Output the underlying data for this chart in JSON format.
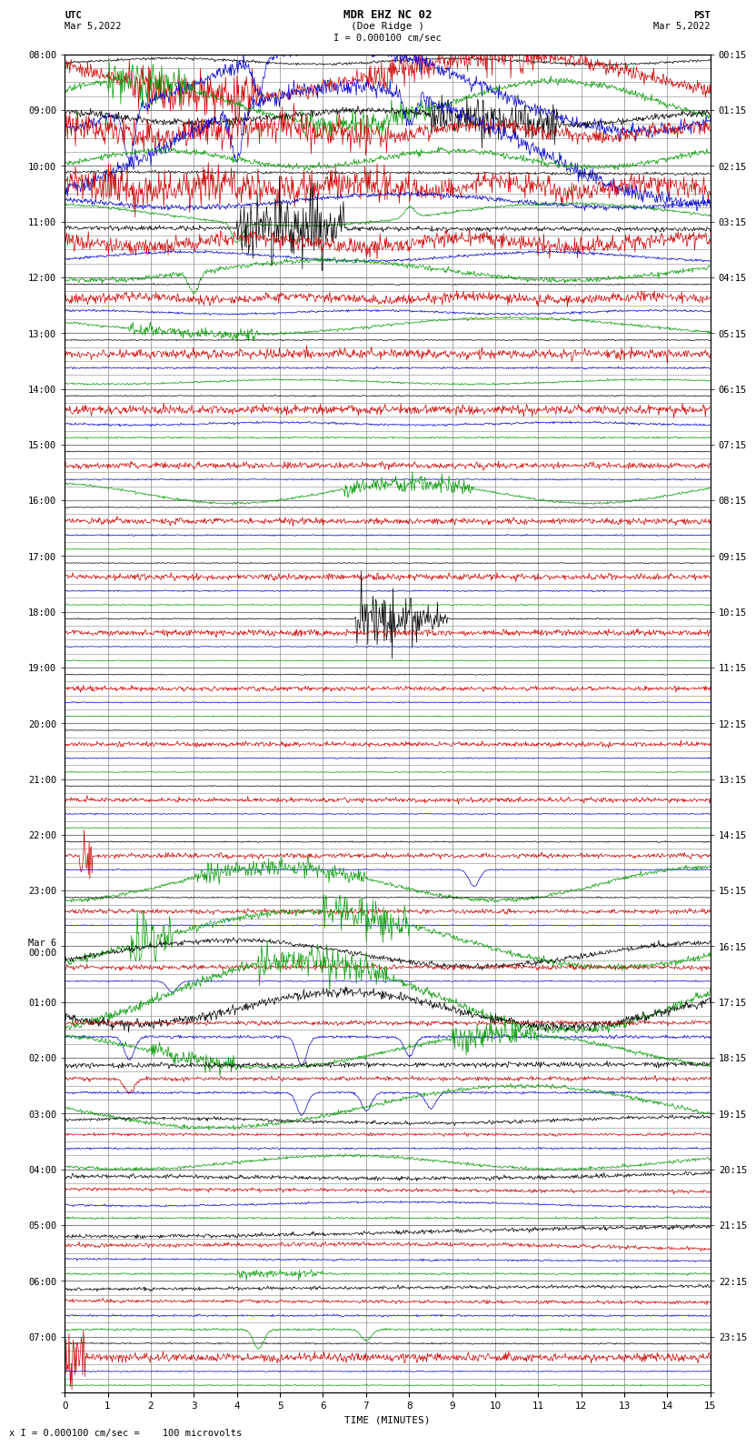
{
  "title_line1": "MDR EHZ NC 02",
  "title_line2": "(Doe Ridge )",
  "scale_label": "I = 0.000100 cm/sec",
  "bottom_label": "x I = 0.000100 cm/sec =    100 microvolts",
  "utc_label": "UTC",
  "utc_date": "Mar 5,2022",
  "pst_label": "PST",
  "pst_date": "Mar 5,2022",
  "xlabel": "TIME (MINUTES)",
  "utc_labels": [
    "08:00",
    "09:00",
    "10:00",
    "11:00",
    "12:00",
    "13:00",
    "14:00",
    "15:00",
    "16:00",
    "17:00",
    "18:00",
    "19:00",
    "20:00",
    "21:00",
    "22:00",
    "23:00",
    "Mar 6\n00:00",
    "01:00",
    "02:00",
    "03:00",
    "04:00",
    "05:00",
    "06:00",
    "07:00"
  ],
  "pst_labels": [
    "00:15",
    "01:15",
    "02:15",
    "03:15",
    "04:15",
    "05:15",
    "06:15",
    "07:15",
    "08:15",
    "09:15",
    "10:15",
    "11:15",
    "12:15",
    "13:15",
    "14:15",
    "15:15",
    "16:15",
    "17:15",
    "18:15",
    "19:15",
    "20:15",
    "21:15",
    "22:15",
    "23:15"
  ],
  "n_segs": 24,
  "n_chans": 4,
  "colors": [
    "#000000",
    "#cc0000",
    "#0000cc",
    "#009900"
  ],
  "grid_color": "#888888",
  "title_fontsize": 9,
  "label_fontsize": 7,
  "tick_fontsize": 7.5
}
